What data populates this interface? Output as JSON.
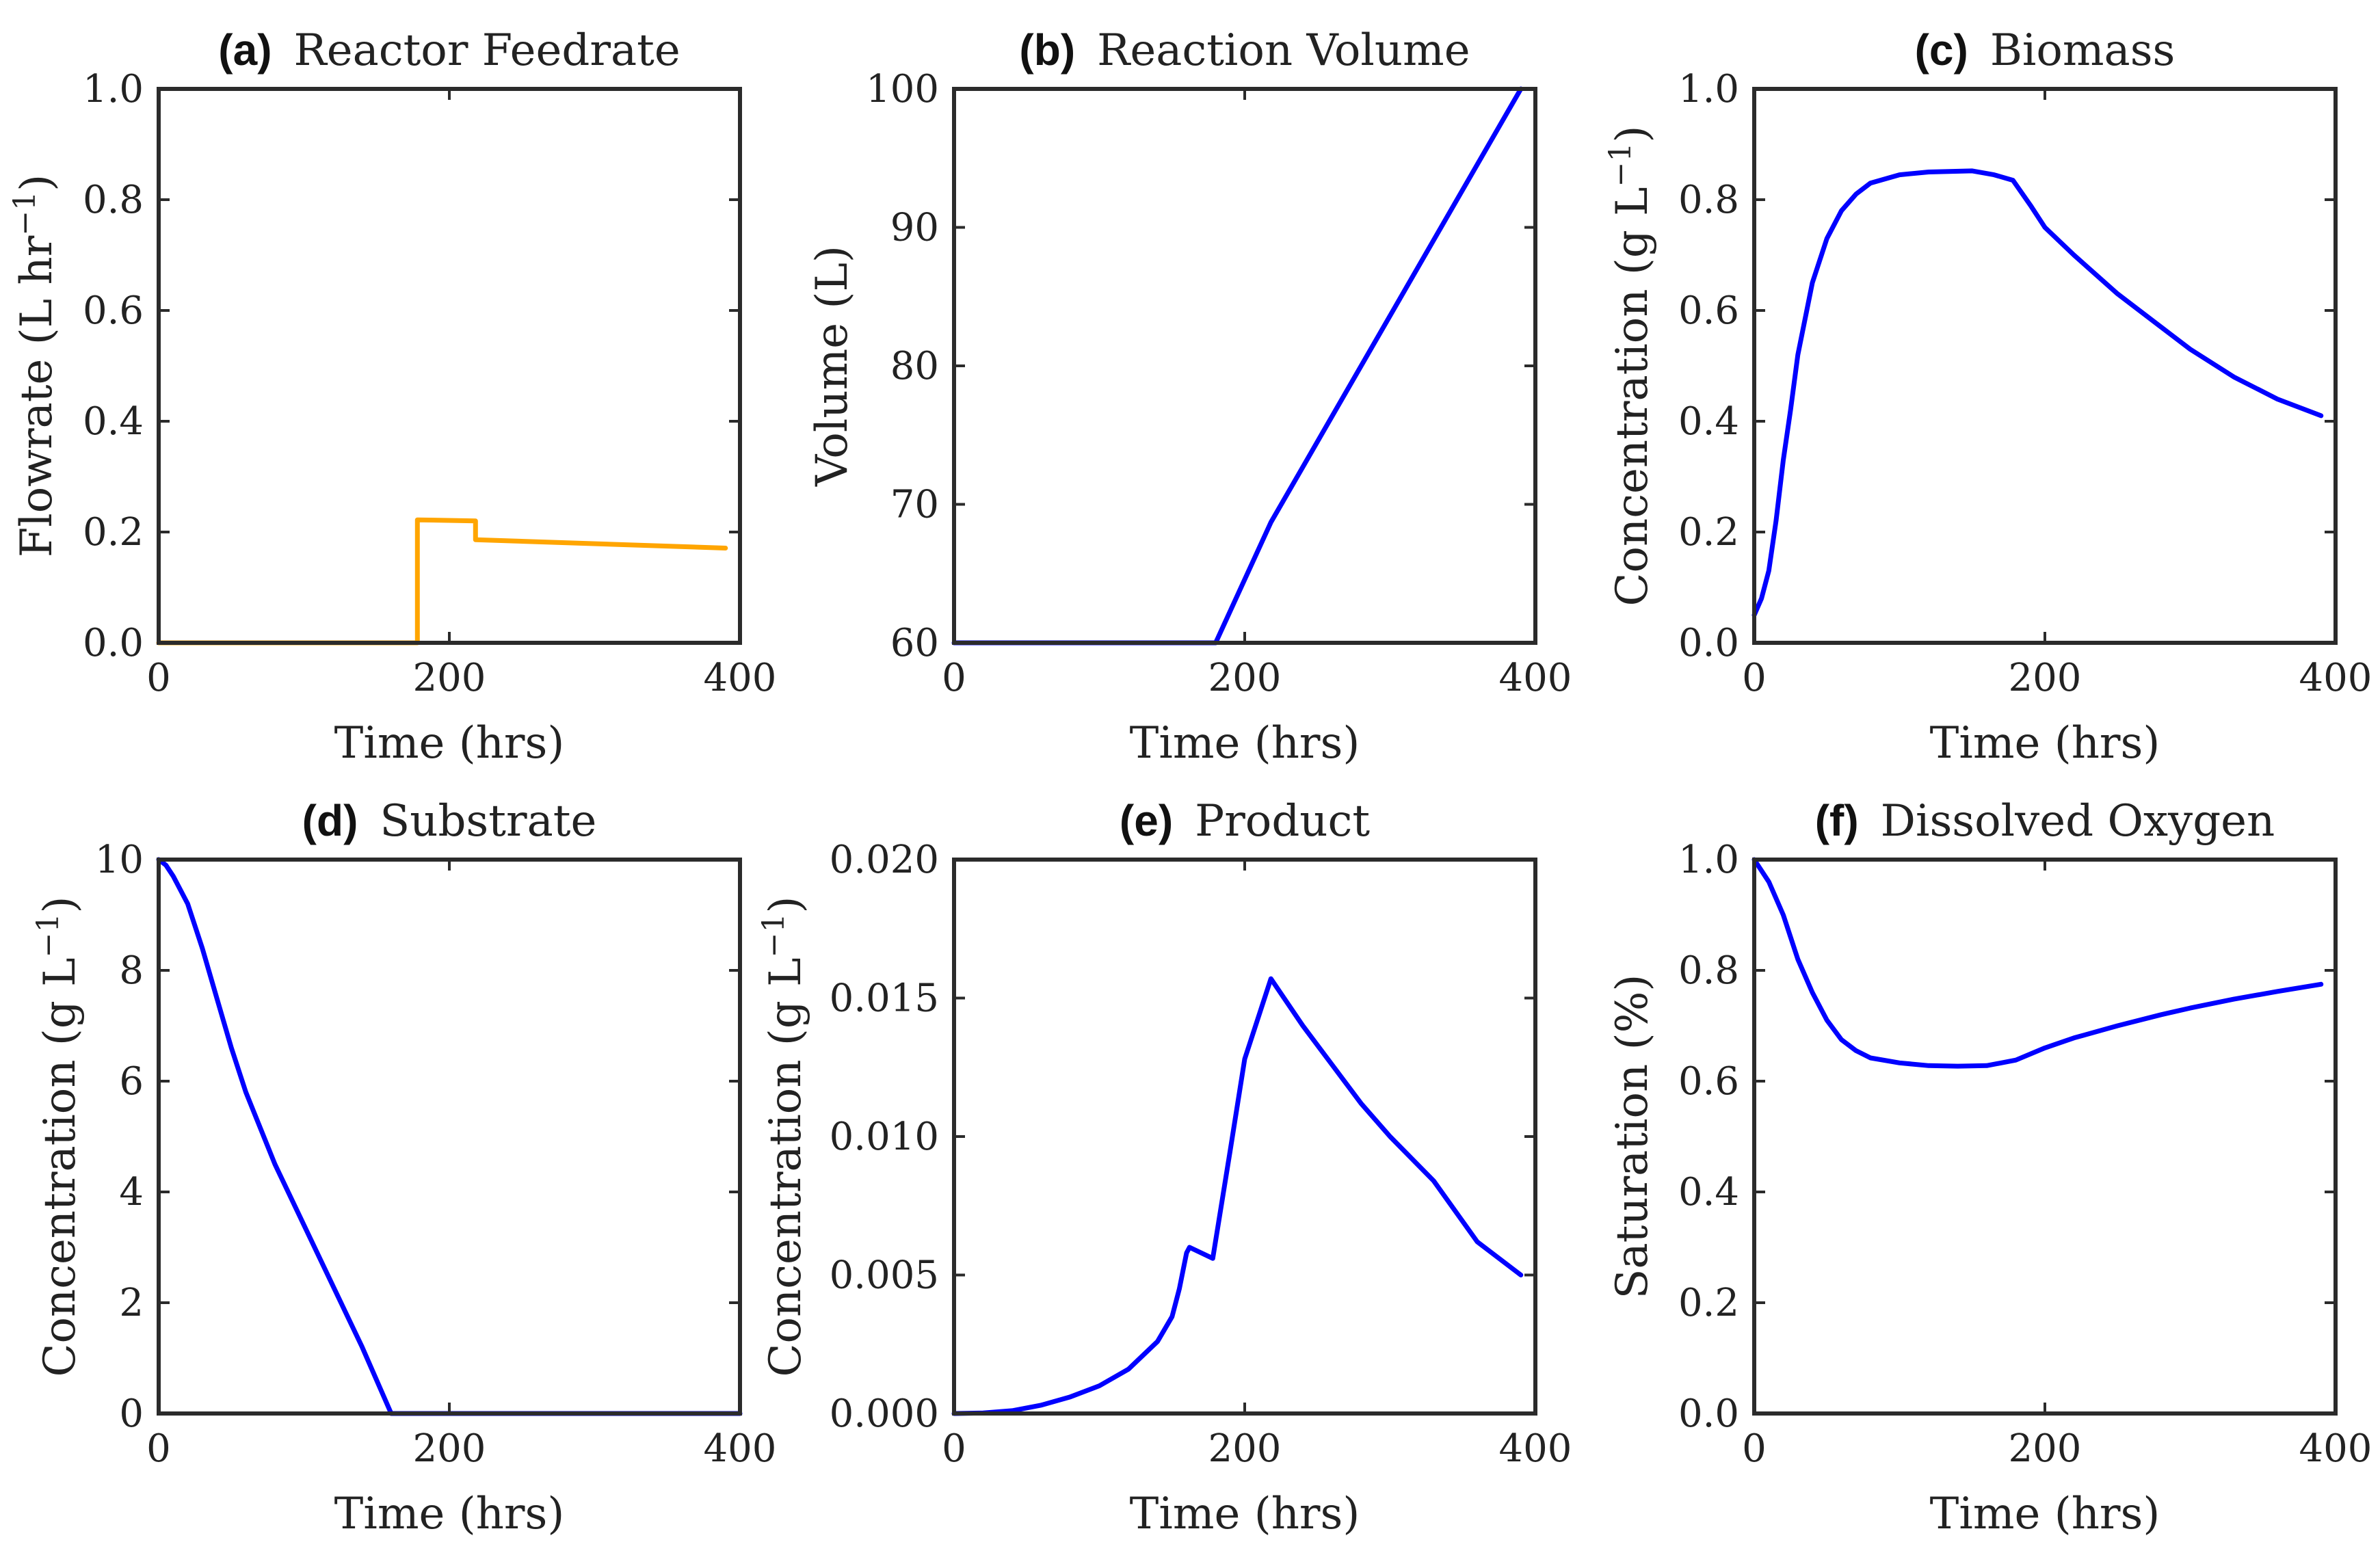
{
  "chart_data": [
    {
      "panel": "(a)",
      "type": "line",
      "title": "Reactor Feedrate",
      "xlabel": "Time (hrs)",
      "ylabel": "Flowrate (L hr",
      "ylabel_sup": "−1",
      "ylabel_end": ")",
      "xlim": [
        0,
        400
      ],
      "ylim": [
        0,
        1
      ],
      "xticks": [
        "0",
        "200",
        "400"
      ],
      "yticks": [
        "0.0",
        "0.2",
        "0.4",
        "0.6",
        "0.8",
        "1.0"
      ],
      "color": "#FFA500",
      "series": [
        {
          "x": [
            0,
            178,
            178,
            218,
            218,
            390
          ],
          "y": [
            0,
            0,
            0.222,
            0.22,
            0.186,
            0.171
          ]
        }
      ]
    },
    {
      "panel": "(b)",
      "type": "line",
      "title": "Reaction Volume",
      "xlabel": "Time (hrs)",
      "ylabel": "Volume (L)",
      "xlim": [
        0,
        400
      ],
      "ylim": [
        60,
        100
      ],
      "xticks": [
        "0",
        "200",
        "400"
      ],
      "yticks": [
        "60",
        "70",
        "80",
        "90",
        "100"
      ],
      "color": "#0000FF",
      "series": [
        {
          "x": [
            0,
            180,
            218,
            390
          ],
          "y": [
            60,
            60,
            68.7,
            100
          ]
        }
      ]
    },
    {
      "panel": "(c)",
      "type": "line",
      "title": "Biomass",
      "xlabel": "Time (hrs)",
      "ylabel": "Concentration (g L",
      "ylabel_sup": "−1",
      "ylabel_end": ")",
      "xlim": [
        0,
        400
      ],
      "ylim": [
        0,
        1
      ],
      "xticks": [
        "0",
        "200",
        "400"
      ],
      "yticks": [
        "0.0",
        "0.2",
        "0.4",
        "0.6",
        "0.8",
        "1.0"
      ],
      "color": "#0000FF",
      "series": [
        {
          "x": [
            0,
            5,
            10,
            15,
            20,
            25,
            30,
            40,
            50,
            60,
            70,
            80,
            100,
            120,
            150,
            165,
            178,
            190,
            200,
            220,
            250,
            280,
            300,
            330,
            360,
            390
          ],
          "y": [
            0.05,
            0.08,
            0.13,
            0.22,
            0.33,
            0.42,
            0.52,
            0.65,
            0.73,
            0.78,
            0.81,
            0.83,
            0.845,
            0.85,
            0.852,
            0.845,
            0.835,
            0.79,
            0.75,
            0.7,
            0.63,
            0.57,
            0.53,
            0.48,
            0.44,
            0.41
          ]
        }
      ]
    },
    {
      "panel": "(d)",
      "type": "line",
      "title": "Substrate",
      "xlabel": "Time (hrs)",
      "ylabel": "Concentration (g L",
      "ylabel_sup": "−1",
      "ylabel_end": ")",
      "xlim": [
        0,
        400
      ],
      "ylim": [
        0,
        10
      ],
      "xticks": [
        "0",
        "200",
        "400"
      ],
      "yticks": [
        "0",
        "2",
        "4",
        "6",
        "8",
        "10"
      ],
      "color": "#0000FF",
      "series": [
        {
          "x": [
            0,
            5,
            10,
            20,
            30,
            40,
            50,
            60,
            80,
            100,
            120,
            140,
            160,
            200,
            300,
            400
          ],
          "y": [
            10,
            9.9,
            9.7,
            9.2,
            8.4,
            7.5,
            6.6,
            5.8,
            4.5,
            3.4,
            2.3,
            1.2,
            0,
            0,
            0,
            0
          ]
        }
      ]
    },
    {
      "panel": "(e)",
      "type": "line",
      "title": "Product",
      "xlabel": "Time (hrs)",
      "ylabel": "Concentration (g L",
      "ylabel_sup": "−1",
      "ylabel_end": ")",
      "xlim": [
        0,
        400
      ],
      "ylim": [
        0,
        0.02
      ],
      "xticks": [
        "0",
        "200",
        "400"
      ],
      "yticks": [
        "0.000",
        "0.005",
        "0.010",
        "0.015",
        "0.020"
      ],
      "color": "#0000FF",
      "series": [
        {
          "x": [
            0,
            20,
            40,
            60,
            80,
            100,
            120,
            140,
            150,
            155,
            160,
            162,
            178,
            190,
            200,
            218,
            240,
            260,
            280,
            300,
            330,
            360,
            390
          ],
          "y": [
            0,
            2e-05,
            0.0001,
            0.0003,
            0.0006,
            0.001,
            0.0016,
            0.0026,
            0.0035,
            0.0045,
            0.0058,
            0.006,
            0.0056,
            0.0095,
            0.0128,
            0.0157,
            0.014,
            0.0126,
            0.0112,
            0.01,
            0.0084,
            0.0062,
            0.005
          ]
        }
      ]
    },
    {
      "panel": "(f)",
      "type": "line",
      "title": "Dissolved Oxygen",
      "xlabel": "Time (hrs)",
      "ylabel": "Saturation (%)",
      "xlim": [
        0,
        400
      ],
      "ylim": [
        0,
        1
      ],
      "xticks": [
        "0",
        "200",
        "400"
      ],
      "yticks": [
        "0.0",
        "0.2",
        "0.4",
        "0.6",
        "0.8",
        "1.0"
      ],
      "color": "#0000FF",
      "series": [
        {
          "x": [
            0,
            10,
            20,
            30,
            40,
            50,
            60,
            70,
            80,
            100,
            120,
            140,
            160,
            180,
            200,
            220,
            250,
            280,
            300,
            330,
            360,
            390
          ],
          "y": [
            1.0,
            0.96,
            0.9,
            0.82,
            0.76,
            0.71,
            0.675,
            0.655,
            0.642,
            0.633,
            0.628,
            0.627,
            0.628,
            0.638,
            0.66,
            0.678,
            0.7,
            0.72,
            0.732,
            0.748,
            0.762,
            0.775
          ]
        }
      ]
    }
  ]
}
